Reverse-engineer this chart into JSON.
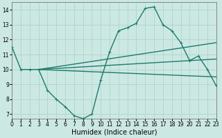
{
  "series": [
    {
      "x": [
        0,
        1,
        2,
        3,
        4,
        5,
        6,
        7,
        8,
        9,
        10,
        11,
        12,
        13,
        14,
        15,
        16,
        17,
        18,
        19,
        20,
        21,
        22,
        23
      ],
      "y": [
        11.5,
        10.0,
        10.0,
        10.0,
        8.6,
        8.0,
        7.5,
        6.9,
        6.7,
        7.0,
        9.3,
        11.2,
        12.6,
        12.8,
        13.1,
        14.1,
        14.2,
        13.0,
        12.6,
        11.8,
        10.6,
        10.9,
        10.0,
        8.9
      ],
      "color": "#1a7a6e",
      "linewidth": 1.0,
      "marker": "+"
    },
    {
      "x": [
        3,
        23
      ],
      "y": [
        10.0,
        11.8
      ],
      "color": "#1a7a6e",
      "linewidth": 1.0,
      "marker": null
    },
    {
      "x": [
        3,
        23
      ],
      "y": [
        10.0,
        10.7
      ],
      "color": "#1a7a6e",
      "linewidth": 1.0,
      "marker": null
    },
    {
      "x": [
        3,
        23
      ],
      "y": [
        10.0,
        9.5
      ],
      "color": "#1a7a6e",
      "linewidth": 1.0,
      "marker": null
    }
  ],
  "xlim": [
    0,
    23
  ],
  "ylim": [
    6.7,
    14.5
  ],
  "xticks": [
    0,
    1,
    2,
    3,
    4,
    5,
    6,
    7,
    8,
    9,
    10,
    11,
    12,
    13,
    14,
    15,
    16,
    17,
    18,
    19,
    20,
    21,
    22,
    23
  ],
  "yticks": [
    7,
    8,
    9,
    10,
    11,
    12,
    13,
    14
  ],
  "xlabel": "Humidex (Indice chaleur)",
  "grid_color": "#aed4cc",
  "background_color": "#cce8e2",
  "line_color": "#1a7a6e",
  "tick_label_fontsize": 5.5,
  "xlabel_fontsize": 7.0
}
